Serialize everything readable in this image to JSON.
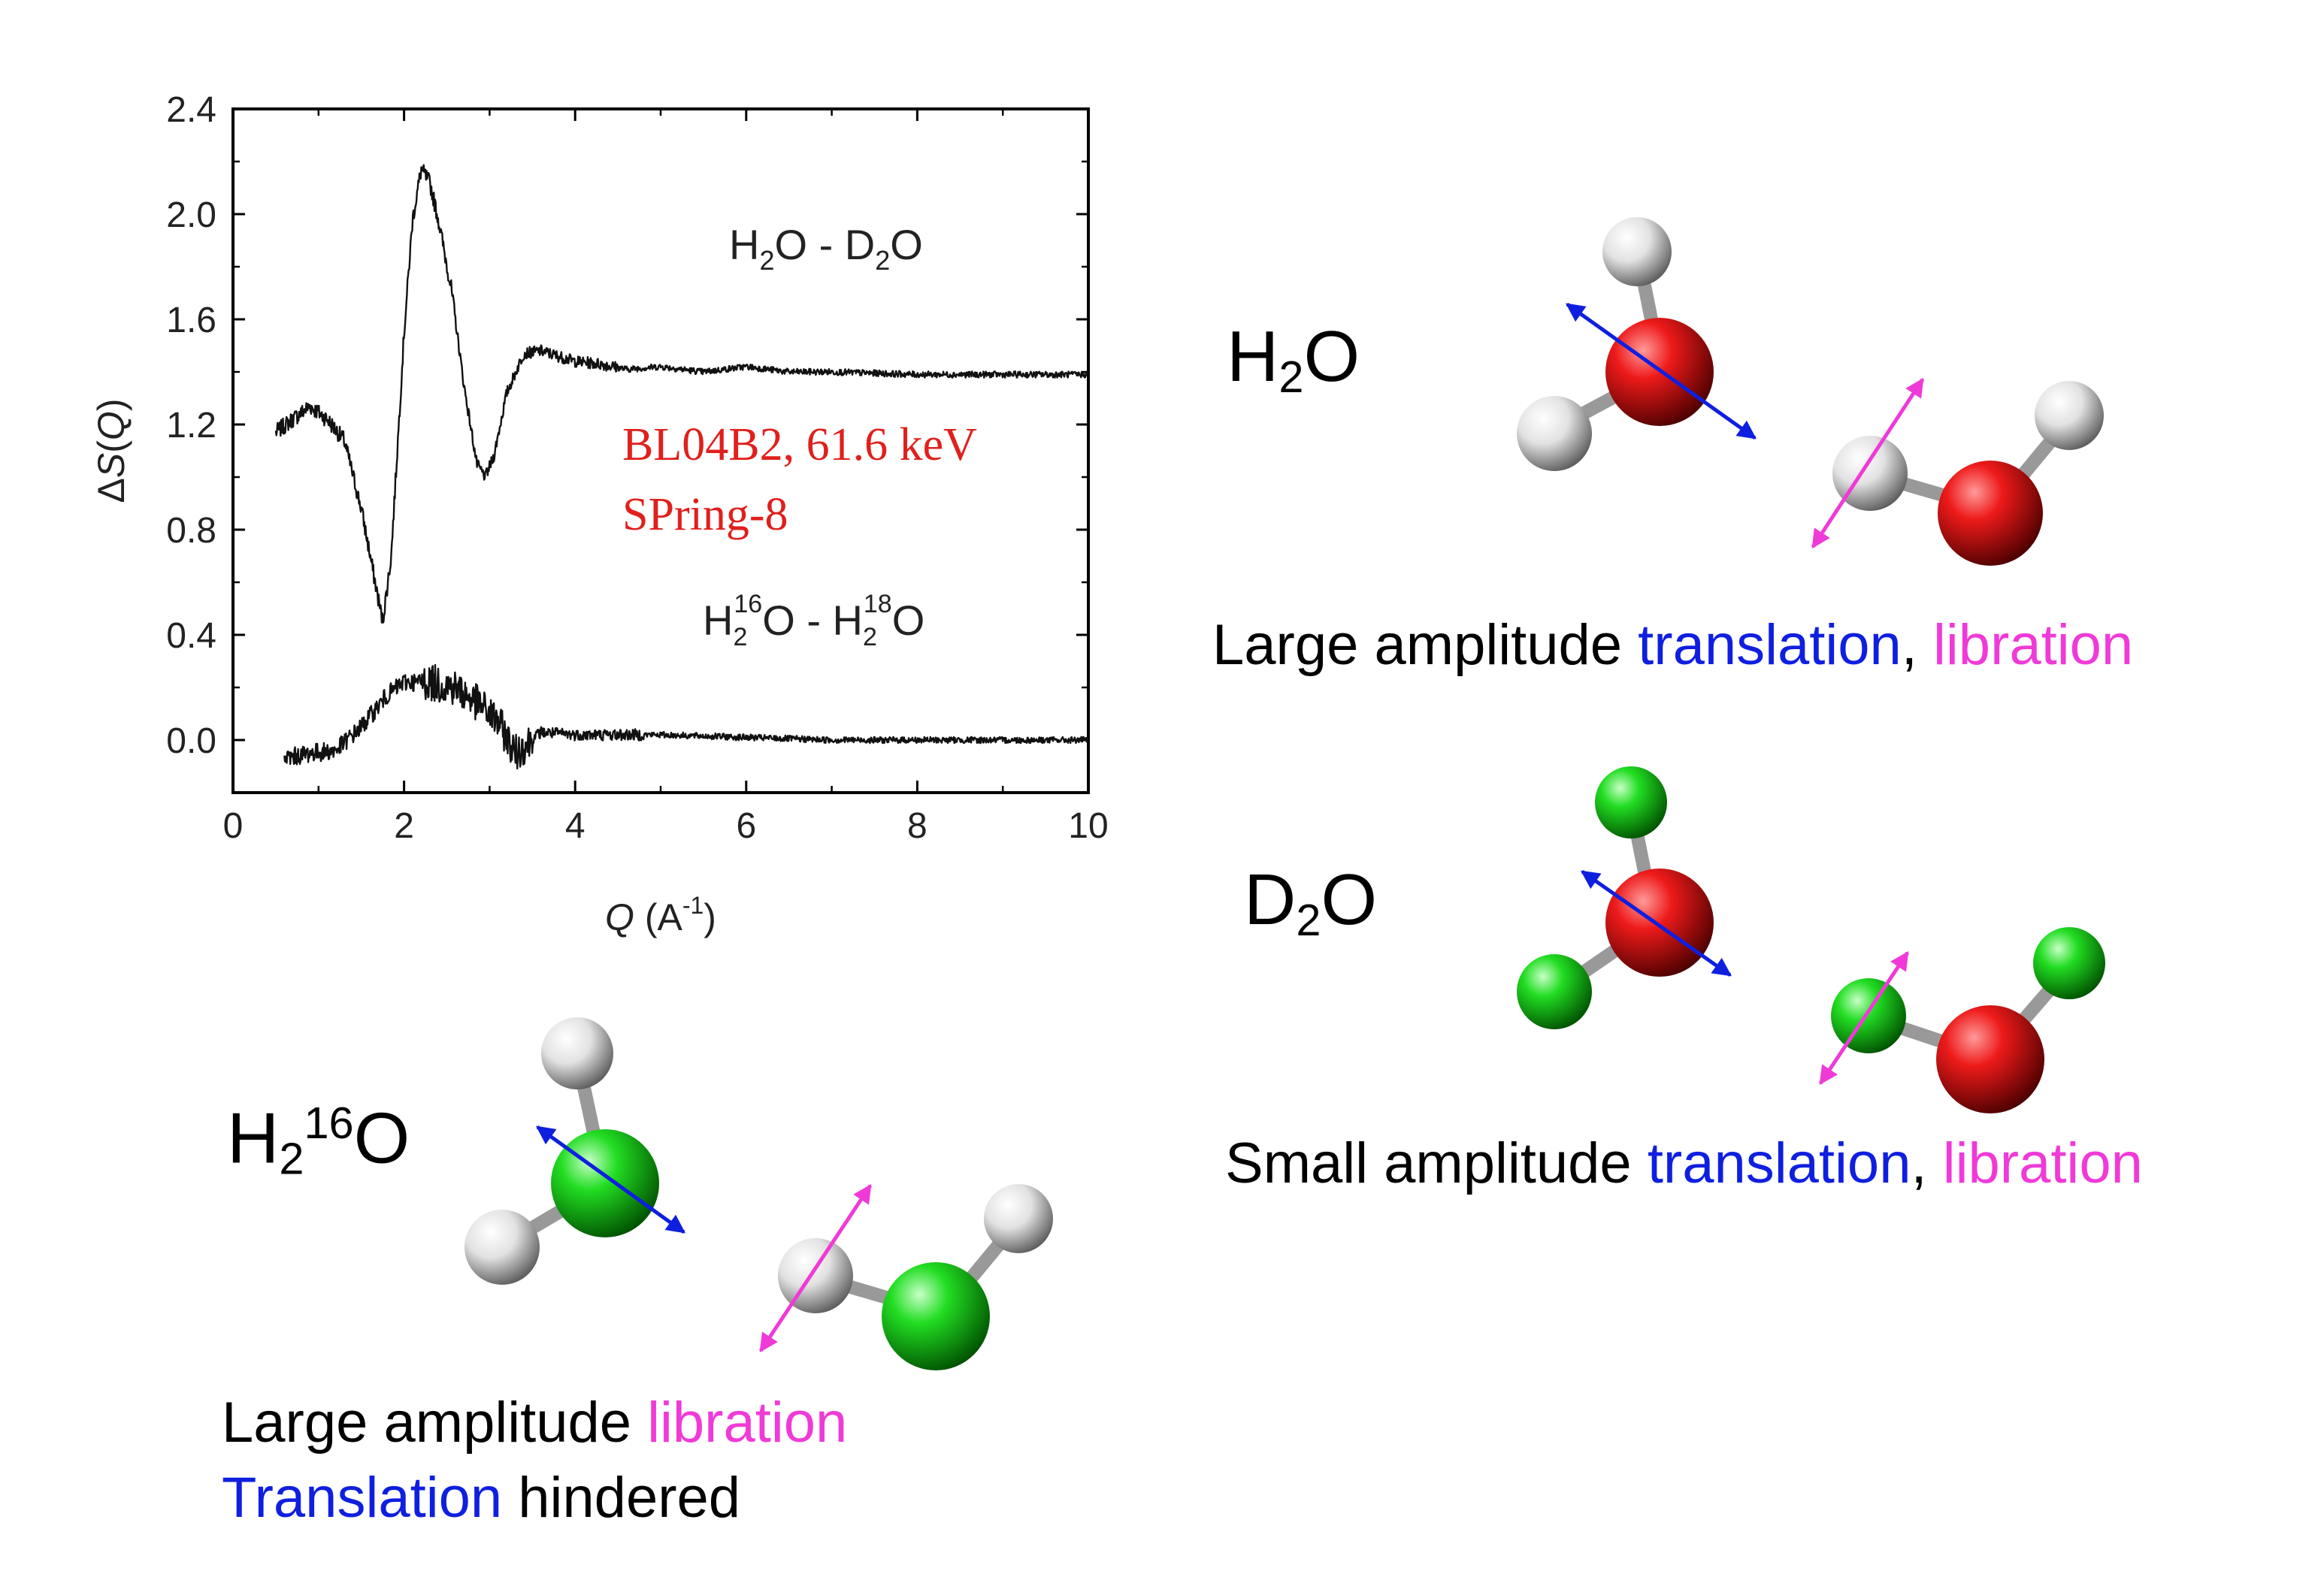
{
  "chart_data": {
    "type": "line",
    "xlabel": "Q (A-1)",
    "ylabel": "ΔS(Q)",
    "xlim": [
      0,
      10
    ],
    "ylim": [
      -0.2,
      2.4
    ],
    "x_ticks": [
      "0",
      "2",
      "4",
      "6",
      "8",
      "10"
    ],
    "y_ticks": [
      "0.0",
      "0.4",
      "0.8",
      "1.2",
      "1.6",
      "2.0",
      "2.4"
    ],
    "grid": false,
    "annotation_source": [
      "BL04B2, 61.6 keV",
      "SPring-8"
    ],
    "series": [
      {
        "name": "H2O - D2O",
        "x": [
          0.5,
          0.7,
          0.9,
          1.1,
          1.3,
          1.5,
          1.65,
          1.75,
          1.85,
          2.0,
          2.1,
          2.2,
          2.3,
          2.4,
          2.55,
          2.7,
          2.85,
          2.95,
          3.05,
          3.2,
          3.4,
          3.6,
          3.8,
          4.0,
          4.3,
          4.6,
          5.0,
          5.5,
          6.0,
          6.5,
          7.0,
          8.0,
          9.0,
          10.0
        ],
        "y": [
          1.17,
          1.22,
          1.27,
          1.22,
          1.14,
          0.88,
          0.62,
          0.45,
          0.7,
          1.55,
          1.98,
          2.17,
          2.12,
          1.98,
          1.72,
          1.35,
          1.05,
          1.0,
          1.08,
          1.32,
          1.47,
          1.48,
          1.46,
          1.44,
          1.43,
          1.41,
          1.42,
          1.4,
          1.42,
          1.4,
          1.4,
          1.39,
          1.39,
          1.39
        ]
      },
      {
        "name": "H2 16O - H2 18O",
        "x": [
          0.6,
          0.9,
          1.2,
          1.5,
          1.8,
          2.0,
          2.3,
          2.6,
          2.9,
          3.1,
          3.3,
          3.6,
          4.0,
          5.0,
          6.0,
          7.0,
          8.0,
          9.0,
          10.0
        ],
        "y": [
          -0.07,
          -0.05,
          -0.04,
          0.05,
          0.17,
          0.22,
          0.22,
          0.2,
          0.13,
          0.07,
          -0.05,
          0.03,
          0.02,
          0.02,
          0.01,
          0.0,
          0.0,
          0.0,
          0.0
        ]
      }
    ]
  },
  "diagram": {
    "h2o": {
      "title_parts": [
        "H",
        "2",
        "O"
      ],
      "caption": [
        "Large amplitude ",
        "translation",
        ", ",
        "libration"
      ]
    },
    "d2o": {
      "title_parts": [
        "D",
        "2",
        "O"
      ],
      "caption": [
        "Small amplitude ",
        "translation",
        ", ",
        "libration"
      ]
    },
    "h216o": {
      "title_parts": [
        "H",
        "2",
        "16",
        "O"
      ],
      "caption_line1": [
        "Large amplitude ",
        "libration"
      ],
      "caption_line2": [
        "Translation",
        " hindered"
      ]
    }
  },
  "colors": {
    "translation": "#0f1fe0",
    "libration": "#f03ad8",
    "source": "#e0201c",
    "oxygen": "#e01010",
    "hydrogen": "#f2f2f2",
    "deuterium": "#22dd22"
  }
}
